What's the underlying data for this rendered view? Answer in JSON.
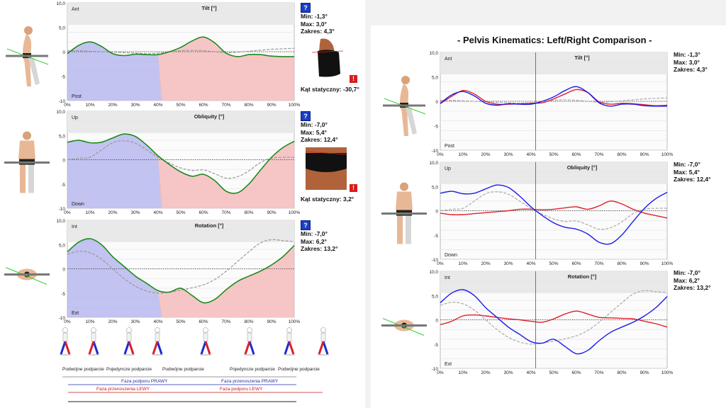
{
  "right_title": "- Pelvis Kinematics: Left/Right Comparison -",
  "colors": {
    "green": "#1f8a1f",
    "blue": "#1a1aee",
    "red": "#e0202a",
    "gray": "#999999",
    "stance_blue": "#b9b9ee",
    "swing_red": "#f5bcbc"
  },
  "icons": [
    "help-icon",
    "warning-icon"
  ],
  "panels": [
    {
      "key": "tilt",
      "title": "Tilt [°]",
      "top_label": "Ant",
      "bottom_label": "Post",
      "stats": {
        "min": "Min:  -1,3°",
        "max": "Max:  3,0°",
        "range": "Zakres: 4,3°"
      },
      "static_angle": "Kąt statyczny: -30,7°"
    },
    {
      "key": "obliquity",
      "title": "Obliquity [°]",
      "top_label": "Up",
      "bottom_label": "Down",
      "stats": {
        "min": "Min:  -7,0°",
        "max": "Max:  5,4°",
        "range": "Zakres: 12,4°"
      },
      "static_angle": "Kąt statyczny: 3,2°"
    },
    {
      "key": "rotation",
      "title": "Rotation [°]",
      "top_label": "Int",
      "bottom_label": "Ext",
      "stats": {
        "min": "Min:  -7,0°",
        "max": "Max:  6,2°",
        "range": "Zakres: 13,2°"
      },
      "static_angle": ""
    }
  ],
  "phases": {
    "row1": [
      "Podwójne podparcie",
      "Pojedyncze podparcie",
      "Podwójne podparcie",
      "Pojedyncze podparcie",
      "Podwójne podparcie"
    ],
    "row2": [
      "Faza podporu PRAWY",
      "Faza przenoszenia PRAWY"
    ],
    "row3": [
      "Faza przenoszenia LEWY",
      "Faza podporu LEWY"
    ]
  },
  "chart_data": [
    {
      "type": "line",
      "title": "Tilt [°]",
      "ylim": [
        -10,
        10
      ],
      "yticks": [
        "10,0",
        "5,0",
        "0",
        "-5",
        "-10"
      ],
      "x": [
        0,
        5,
        10,
        15,
        20,
        25,
        30,
        35,
        40,
        45,
        50,
        55,
        60,
        65,
        70,
        75,
        80,
        85,
        90,
        95,
        100
      ],
      "xticks": [
        "0%",
        "10%",
        "20%",
        "30%",
        "40%",
        "50%",
        "60%",
        "70%",
        "80%",
        "90%",
        "100%"
      ],
      "stance_end_pct": 42,
      "series": [
        {
          "role": "left_green",
          "values": [
            -0.4,
            1.3,
            2.0,
            1.1,
            -0.4,
            -0.8,
            -0.5,
            -0.6,
            -0.6,
            0,
            0.9,
            2.2,
            3.0,
            1.8,
            -0.3,
            -1.0,
            -0.6,
            -0.6,
            -0.9,
            -1.0,
            -1.0
          ]
        },
        {
          "role": "reference",
          "values": [
            0.2,
            0.2,
            0.1,
            0,
            -0.1,
            -0.2,
            -0.3,
            -0.4,
            -0.3,
            0,
            0.2,
            0.3,
            0.2,
            0,
            -0.2,
            -0.1,
            0.1,
            0.3,
            0.5,
            0.6,
            0.7
          ]
        },
        {
          "role": "right_blue",
          "values": [
            -0.4,
            1.3,
            2.0,
            1.1,
            -0.4,
            -0.8,
            -0.5,
            -0.6,
            -0.6,
            0,
            0.9,
            2.2,
            3.0,
            1.8,
            -0.3,
            -1.0,
            -0.6,
            -0.6,
            -0.9,
            -1.0,
            -1.0
          ]
        },
        {
          "role": "right_red",
          "values": [
            -0.5,
            1.0,
            2.2,
            1.5,
            0,
            -0.6,
            -0.6,
            -0.5,
            -0.4,
            -0.3,
            0.5,
            1.5,
            2.4,
            1.8,
            -0.1,
            -0.6,
            -0.4,
            -0.5,
            -0.7,
            -0.9,
            -0.8
          ]
        }
      ]
    },
    {
      "type": "line",
      "title": "Obliquity [°]",
      "ylim": [
        -10,
        10
      ],
      "yticks": [
        "10,0",
        "5,0",
        "0",
        "-5",
        "-10"
      ],
      "x": [
        0,
        5,
        10,
        15,
        20,
        25,
        30,
        35,
        40,
        45,
        50,
        55,
        60,
        65,
        70,
        75,
        80,
        85,
        90,
        95,
        100
      ],
      "xticks": [
        "0%",
        "10%",
        "20%",
        "30%",
        "40%",
        "50%",
        "60%",
        "70%",
        "80%",
        "90%",
        "100%"
      ],
      "stance_end_pct": 42,
      "series": [
        {
          "role": "left_green",
          "values": [
            3.6,
            4.0,
            3.5,
            3.6,
            4.5,
            5.3,
            4.8,
            3.0,
            0.8,
            -1.0,
            -2.5,
            -3.4,
            -3.0,
            -4.3,
            -6.5,
            -6.8,
            -5.0,
            -2.2,
            0.5,
            2.5,
            3.8
          ]
        },
        {
          "role": "reference",
          "values": [
            0,
            0.3,
            0.5,
            2.0,
            3.5,
            3.9,
            3.4,
            2.0,
            0.5,
            -0.7,
            -1.7,
            -2.2,
            -2.1,
            -2.9,
            -3.8,
            -3.5,
            -2.3,
            -0.6,
            0.3,
            0.5,
            0.5
          ]
        },
        {
          "role": "right_blue",
          "values": [
            3.6,
            4.0,
            3.5,
            3.6,
            4.5,
            5.3,
            4.8,
            3.0,
            0.8,
            -1.0,
            -2.5,
            -3.4,
            -3.8,
            -4.8,
            -6.5,
            -6.8,
            -5.0,
            -2.2,
            0.5,
            2.5,
            3.8
          ]
        },
        {
          "role": "right_red",
          "values": [
            -0.5,
            -0.8,
            -0.8,
            -0.6,
            -0.4,
            -0.2,
            0,
            0.3,
            0.3,
            0.2,
            0.3,
            0.6,
            0.8,
            0.3,
            1.0,
            2.0,
            1.4,
            0.3,
            -0.5,
            -1.0,
            -1.5
          ]
        }
      ]
    },
    {
      "type": "line",
      "title": "Rotation [°]",
      "ylim": [
        -10,
        10
      ],
      "yticks": [
        "10,0",
        "5,0",
        "0",
        "-5",
        "-10"
      ],
      "x": [
        0,
        5,
        10,
        15,
        20,
        25,
        30,
        35,
        40,
        45,
        50,
        55,
        60,
        65,
        70,
        75,
        80,
        85,
        90,
        95,
        100
      ],
      "xticks": [
        "0%",
        "10%",
        "20%",
        "30%",
        "40%",
        "50%",
        "60%",
        "70%",
        "80%",
        "90%",
        "100%"
      ],
      "stance_end_pct": 42,
      "series": [
        {
          "role": "left_green",
          "values": [
            3.5,
            5.5,
            6.2,
            5.0,
            2.5,
            0.5,
            -1.5,
            -3.0,
            -4.5,
            -4.8,
            -4.0,
            -5.5,
            -7.0,
            -6.3,
            -4.3,
            -2.6,
            -1.5,
            -0.5,
            0.8,
            2.5,
            4.8
          ]
        },
        {
          "role": "reference",
          "values": [
            3.0,
            3.6,
            3.3,
            2.0,
            0,
            -2.0,
            -3.6,
            -4.6,
            -5.0,
            -4.8,
            -4.4,
            -3.9,
            -3.3,
            -2.2,
            -0.5,
            1.5,
            3.5,
            5.3,
            6.0,
            5.8,
            5.6
          ]
        },
        {
          "role": "right_blue",
          "values": [
            3.5,
            5.5,
            6.2,
            5.0,
            2.5,
            0.5,
            -1.5,
            -3.0,
            -4.5,
            -4.8,
            -4.0,
            -5.5,
            -7.0,
            -6.3,
            -4.3,
            -2.6,
            -1.5,
            -0.5,
            0.8,
            2.5,
            4.8
          ]
        },
        {
          "role": "right_red",
          "values": [
            -1.0,
            -0.3,
            0.8,
            1.0,
            0.8,
            0.5,
            0.2,
            0,
            -0.3,
            -0.5,
            0.2,
            1.2,
            1.8,
            1.2,
            0.5,
            0.4,
            0.3,
            0.2,
            -0.3,
            -0.8,
            -1.5
          ]
        }
      ]
    }
  ]
}
